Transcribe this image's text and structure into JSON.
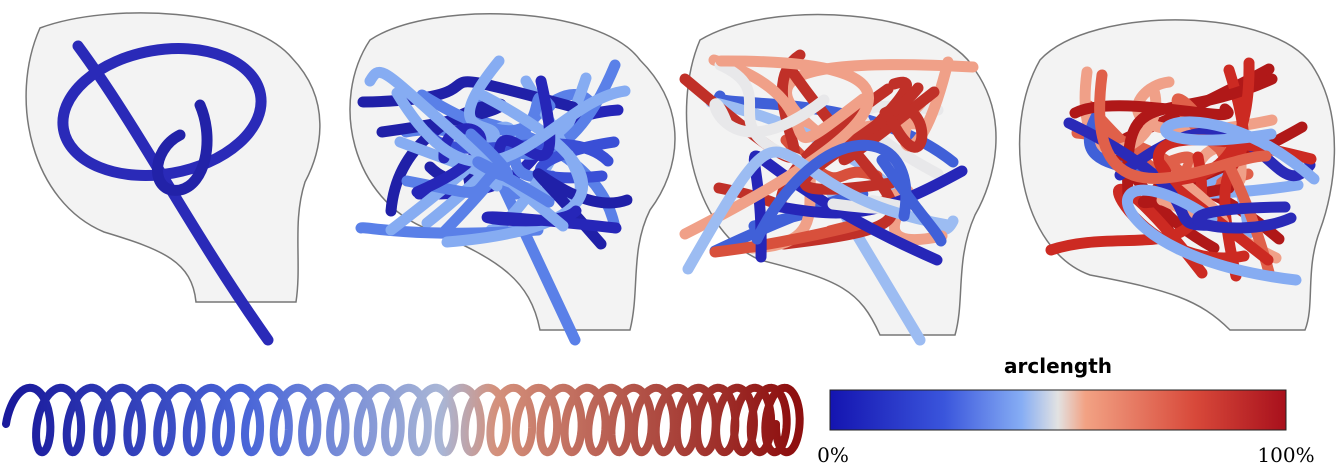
{
  "colorbar": {
    "title": "arclength",
    "min_label": "0%",
    "max_label": "100%"
  }
}
